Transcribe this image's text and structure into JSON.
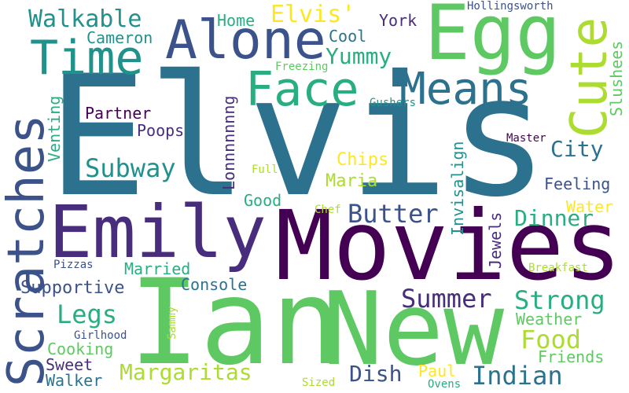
{
  "palette": {
    "dark_purple": "#440154",
    "indigo": "#472d7b",
    "slate_blue": "#3b528b",
    "steel_blue": "#2c728e",
    "teal": "#21918c",
    "sea_green": "#28ae80",
    "green": "#5ec962",
    "lime": "#addc30",
    "yellow": "#fde725"
  },
  "words": {
    "elvis": "Elvis",
    "movies": "Movies",
    "ian": "Ian",
    "new": "New",
    "emily": "Emily",
    "scratches": "Scratches",
    "egg": "Egg",
    "alone": "Alone",
    "time": "Time",
    "face": "Face",
    "cute": "Cute",
    "means": "Means",
    "walkable": "Walkable",
    "elvis_apos": "Elvis'",
    "home": "Home",
    "york": "York",
    "hollingsworth": "Hollingsworth",
    "cameron": "Cameron",
    "cool": "Cool",
    "yummy": "Yummy",
    "slushees": "Slushees",
    "freezing": "Freezing",
    "lonnnnnnng": "Lonnnnnnng",
    "partner": "Partner",
    "gushers": "Gushers",
    "venting": "Venting",
    "poops": "Poops",
    "city": "City",
    "master": "Master",
    "subway": "Subway",
    "chips": "Chips",
    "full": "Full",
    "maria": "Maria",
    "invisalign": "Invisalign",
    "feeling": "Feeling",
    "good": "Good",
    "butter": "Butter",
    "chef": "Chef",
    "water": "Water",
    "dinner": "Dinner",
    "jewels": "Jewels",
    "pizzas": "Pizzas",
    "married": "Married",
    "breakfast": "Breakfast",
    "console": "Console",
    "supportive": "Supportive",
    "summer": "Summer",
    "strong": "Strong",
    "legs": "Legs",
    "weather": "Weather",
    "food": "Food",
    "sammy": "Sammy",
    "girlhood": "Girlhood",
    "cooking": "Cooking",
    "friends": "Friends",
    "sweet": "Sweet",
    "margaritas": "Margaritas",
    "indian": "Indian",
    "dish": "Dish",
    "paul": "Paul",
    "walker": "Walker",
    "sized": "Sized",
    "ovens": "Ovens"
  }
}
